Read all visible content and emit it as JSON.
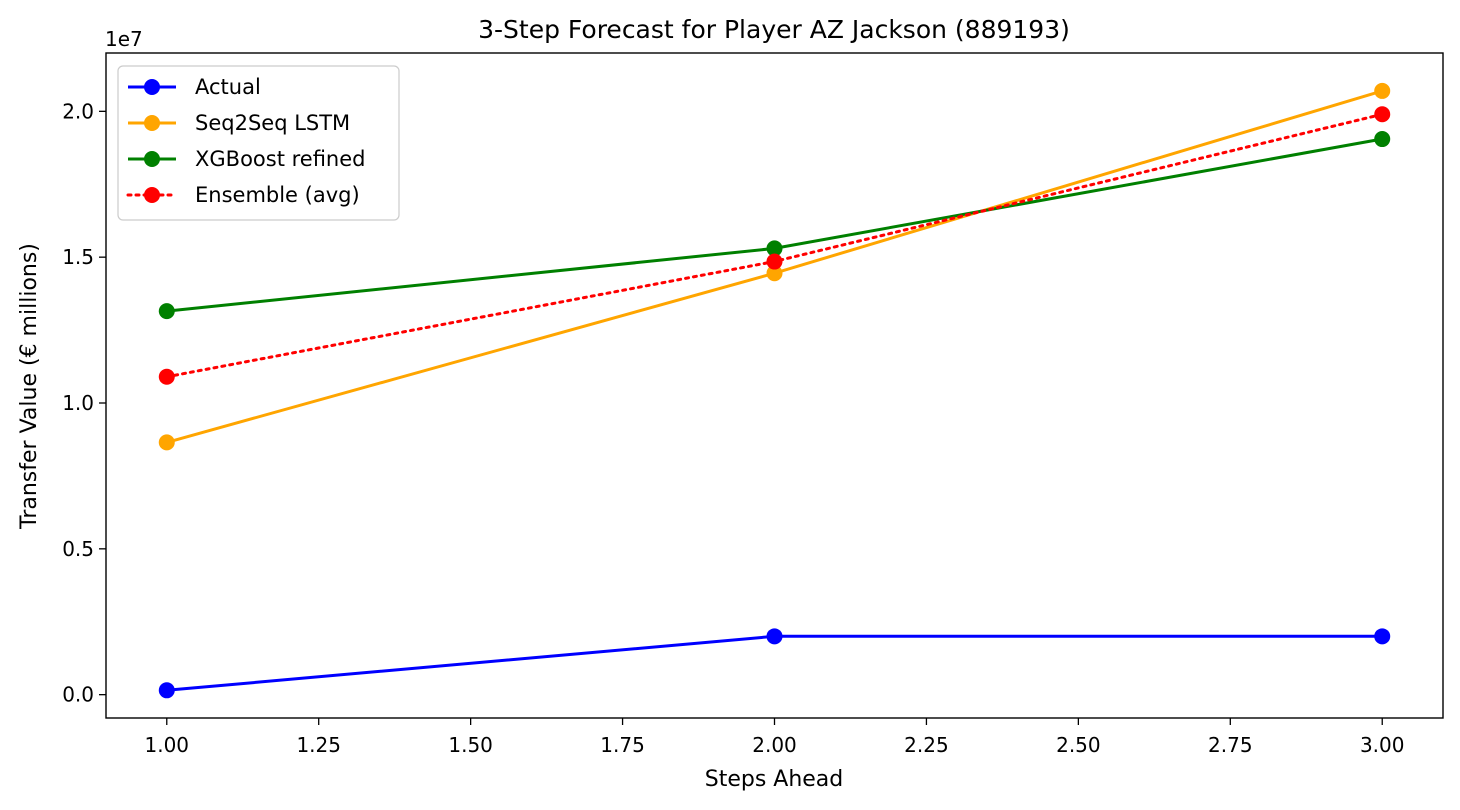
{
  "chart_data": {
    "type": "line",
    "title": "3-Step Forecast for Player AZ Jackson (889193)",
    "xlabel": "Steps Ahead",
    "ylabel": "Transfer Value (€ millions)",
    "y_offset_label": "1e7",
    "xlim": [
      0.9,
      3.1
    ],
    "ylim": [
      -0.08,
      2.2
    ],
    "x_ticks": [
      1.0,
      1.25,
      1.5,
      1.75,
      2.0,
      2.25,
      2.5,
      2.75,
      3.0
    ],
    "x_tick_labels": [
      "1.00",
      "1.25",
      "1.50",
      "1.75",
      "2.00",
      "2.25",
      "2.50",
      "2.75",
      "3.00"
    ],
    "y_ticks": [
      0.0,
      0.5,
      1.0,
      1.5,
      2.0
    ],
    "y_tick_labels": [
      "0.0",
      "0.5",
      "1.0",
      "1.5",
      "2.0"
    ],
    "y_unit_note": "values in units of 1e7 (tens of millions €)",
    "x": [
      1,
      2,
      3
    ],
    "series": [
      {
        "name": "Actual",
        "values": [
          0.015,
          0.2,
          0.2
        ],
        "color": "#0000ff",
        "style": "solid"
      },
      {
        "name": "Seq2Seq LSTM",
        "values": [
          0.865,
          1.445,
          2.07
        ],
        "color": "#ffa500",
        "style": "solid"
      },
      {
        "name": "XGBoost refined",
        "values": [
          1.315,
          1.53,
          1.905
        ],
        "color": "#008000",
        "style": "solid"
      },
      {
        "name": "Ensemble (avg)",
        "values": [
          1.09,
          1.485,
          1.99
        ],
        "color": "#ff0000",
        "style": "dotted"
      }
    ],
    "legend_position": "top-left",
    "grid": false
  }
}
